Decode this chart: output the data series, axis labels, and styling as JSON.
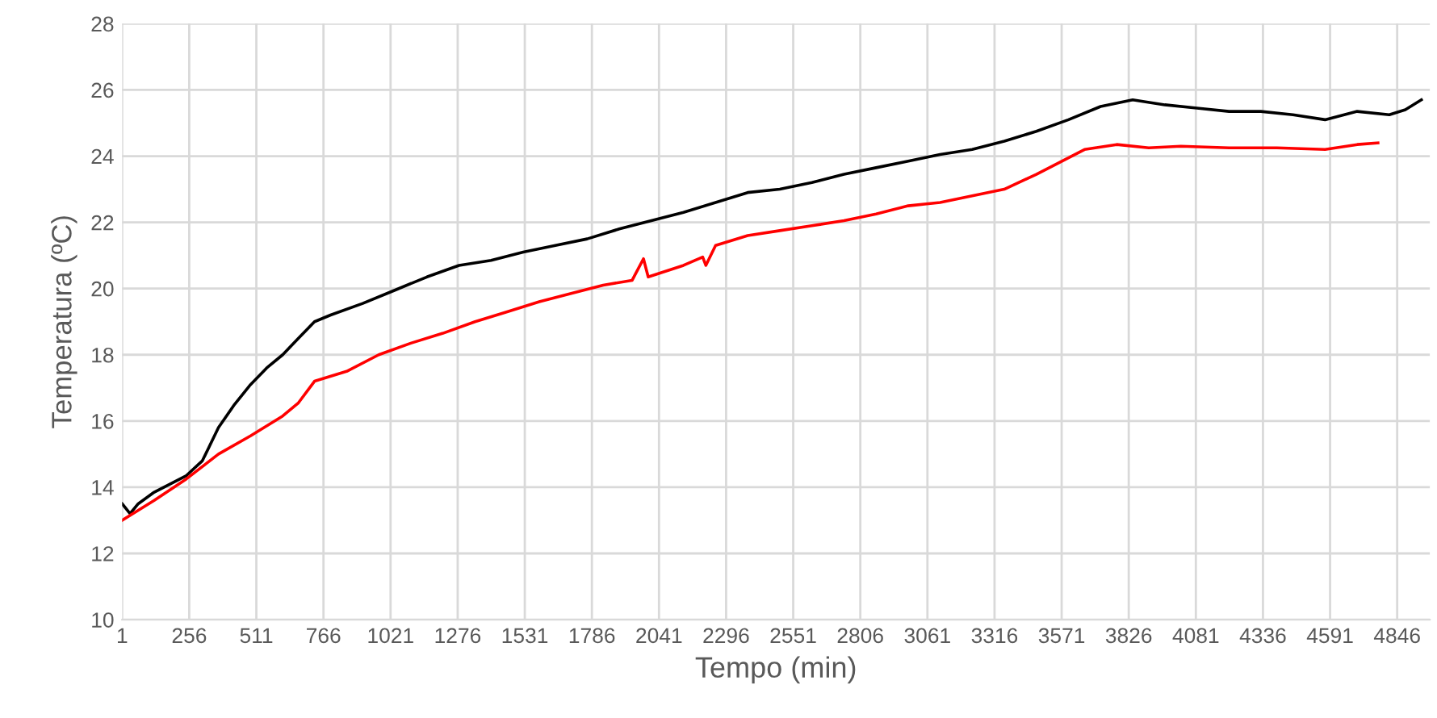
{
  "chart_data": {
    "type": "line",
    "xlabel": "Tempo (min)",
    "ylabel": "Temperatura (ºC)",
    "xlim": [
      1,
      4970
    ],
    "xticks": [
      1,
      256,
      511,
      766,
      1021,
      1276,
      1531,
      1786,
      2041,
      2296,
      2551,
      2806,
      3061,
      3316,
      3571,
      3826,
      4081,
      4336,
      4591,
      4846
    ],
    "ylim": [
      10,
      28
    ],
    "yticks": [
      10,
      12,
      14,
      16,
      18,
      20,
      22,
      24,
      26,
      28
    ],
    "grid": true,
    "series": [
      {
        "color": "#000000",
        "x": [
          1,
          31,
          62,
          123,
          184,
          245,
          306,
          367,
          428,
          489,
          550,
          611,
          671,
          732,
          793,
          915,
          1037,
          1159,
          1281,
          1403,
          1525,
          1647,
          1768,
          1890,
          2012,
          2134,
          2256,
          2378,
          2500,
          2622,
          2744,
          2866,
          2988,
          3109,
          3231,
          3353,
          3475,
          3597,
          3719,
          3841,
          3963,
          4085,
          4207,
          4328,
          4450,
          4572,
          4694,
          4816,
          4877,
          4938
        ],
        "values": [
          13.5,
          13.2,
          13.5,
          13.85,
          14.1,
          14.35,
          14.8,
          15.8,
          16.5,
          17.1,
          17.6,
          18.0,
          18.5,
          19.0,
          19.2,
          19.55,
          19.95,
          20.35,
          20.7,
          20.85,
          21.1,
          21.3,
          21.5,
          21.8,
          22.05,
          22.3,
          22.6,
          22.9,
          23.0,
          23.2,
          23.45,
          23.65,
          23.85,
          24.05,
          24.2,
          24.45,
          24.75,
          25.1,
          25.5,
          25.7,
          25.55,
          25.45,
          25.35,
          25.35,
          25.25,
          25.1,
          25.35,
          25.25,
          25.4,
          25.7
        ]
      },
      {
        "color": "#ff0000",
        "x": [
          1,
          123,
          245,
          367,
          489,
          611,
          671,
          732,
          854,
          976,
          1098,
          1220,
          1342,
          1464,
          1586,
          1707,
          1829,
          1939,
          1982,
          2000,
          2134,
          2207,
          2219,
          2256,
          2378,
          2500,
          2622,
          2744,
          2866,
          2988,
          3109,
          3231,
          3353,
          3475,
          3597,
          3658,
          3780,
          3902,
          4024,
          4207,
          4389,
          4572,
          4694,
          4773
        ],
        "values": [
          13.0,
          13.6,
          14.25,
          15.0,
          15.55,
          16.15,
          16.55,
          17.2,
          17.5,
          18.0,
          18.35,
          18.65,
          19.0,
          19.3,
          19.6,
          19.85,
          20.1,
          20.25,
          20.9,
          20.35,
          20.7,
          20.95,
          20.7,
          21.3,
          21.6,
          21.75,
          21.9,
          22.05,
          22.25,
          22.5,
          22.6,
          22.8,
          23.0,
          23.45,
          23.95,
          24.2,
          24.35,
          24.25,
          24.3,
          24.25,
          24.25,
          24.2,
          24.35,
          24.4
        ]
      }
    ]
  }
}
